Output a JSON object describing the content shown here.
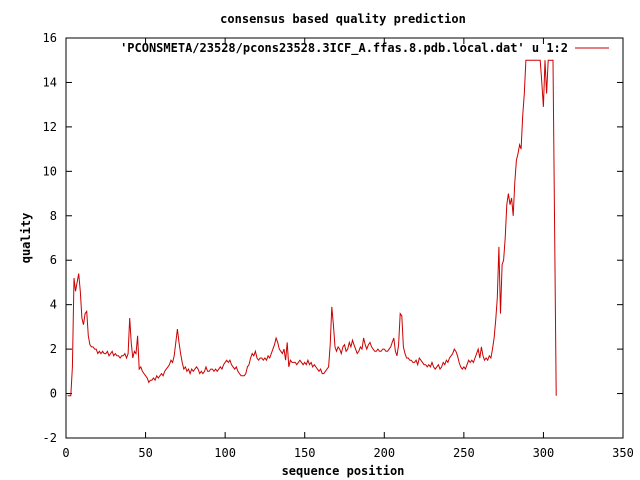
{
  "chart_data": {
    "type": "line",
    "title": "consensus based quality prediction",
    "xlabel": "sequence position",
    "ylabel": "quality",
    "xlim": [
      0,
      350
    ],
    "ylim": [
      -2,
      16
    ],
    "xticks": [
      0,
      50,
      100,
      150,
      200,
      250,
      300,
      350
    ],
    "yticks": [
      -2,
      0,
      2,
      4,
      6,
      8,
      10,
      12,
      14,
      16
    ],
    "grid": false,
    "legend_position": "top-right",
    "series": [
      {
        "name": "'PCONSMETA/23528/pcons23528.3ICF_A.ffas.8.pdb.local.dat' u 1:2",
        "color": "#cc0000",
        "x": [
          1,
          2,
          3,
          4,
          5,
          6,
          7,
          8,
          9,
          10,
          11,
          12,
          13,
          14,
          15,
          16,
          17,
          18,
          19,
          20,
          21,
          22,
          23,
          24,
          25,
          26,
          27,
          28,
          29,
          30,
          31,
          32,
          33,
          34,
          35,
          36,
          37,
          38,
          39,
          40,
          41,
          42,
          43,
          44,
          45,
          46,
          47,
          48,
          49,
          50,
          51,
          52,
          53,
          54,
          55,
          56,
          57,
          58,
          59,
          60,
          61,
          62,
          63,
          64,
          65,
          66,
          67,
          68,
          69,
          70,
          71,
          72,
          73,
          74,
          75,
          76,
          77,
          78,
          79,
          80,
          81,
          82,
          83,
          84,
          85,
          86,
          87,
          88,
          89,
          90,
          91,
          92,
          93,
          94,
          95,
          96,
          97,
          98,
          99,
          100,
          101,
          102,
          103,
          104,
          105,
          106,
          107,
          108,
          109,
          110,
          111,
          112,
          113,
          114,
          115,
          116,
          117,
          118,
          119,
          120,
          121,
          122,
          123,
          124,
          125,
          126,
          127,
          128,
          129,
          130,
          131,
          132,
          133,
          134,
          135,
          136,
          137,
          138,
          139,
          140,
          141,
          142,
          143,
          144,
          145,
          146,
          147,
          148,
          149,
          150,
          151,
          152,
          153,
          154,
          155,
          156,
          157,
          158,
          159,
          160,
          161,
          162,
          163,
          164,
          165,
          166,
          167,
          168,
          169,
          170,
          171,
          172,
          173,
          174,
          175,
          176,
          177,
          178,
          179,
          180,
          181,
          182,
          183,
          184,
          185,
          186,
          187,
          188,
          189,
          190,
          191,
          192,
          193,
          194,
          195,
          196,
          197,
          198,
          199,
          200,
          201,
          202,
          203,
          204,
          205,
          206,
          207,
          208,
          209,
          210,
          211,
          212,
          213,
          214,
          215,
          216,
          217,
          218,
          219,
          220,
          221,
          222,
          223,
          224,
          225,
          226,
          227,
          228,
          229,
          230,
          231,
          232,
          233,
          234,
          235,
          236,
          237,
          238,
          239,
          240,
          241,
          242,
          243,
          244,
          245,
          246,
          247,
          248,
          249,
          250,
          251,
          252,
          253,
          254,
          255,
          256,
          257,
          258,
          259,
          260,
          261,
          262,
          263,
          264,
          265,
          266,
          267,
          268,
          269,
          270,
          271,
          272,
          273,
          274,
          275,
          276,
          277,
          278,
          279,
          280,
          281,
          282,
          283,
          284,
          285,
          286,
          287,
          288,
          289,
          290,
          291,
          292,
          293,
          294,
          295,
          296,
          297,
          298,
          299,
          300,
          301,
          302,
          303,
          304,
          305,
          306,
          307,
          308
        ],
        "y": [
          -0.1,
          -0.1,
          -0.1,
          1.2,
          5.2,
          4.6,
          5.0,
          5.4,
          4.6,
          3.4,
          3.1,
          3.6,
          3.7,
          2.6,
          2.2,
          2.1,
          2.1,
          2.0,
          2.0,
          1.8,
          1.9,
          1.8,
          1.9,
          1.8,
          1.8,
          1.9,
          1.7,
          1.8,
          1.9,
          1.7,
          1.8,
          1.7,
          1.7,
          1.6,
          1.7,
          1.7,
          1.8,
          1.6,
          1.8,
          3.4,
          2.3,
          1.6,
          1.9,
          1.8,
          2.6,
          1.1,
          1.2,
          1.0,
          0.9,
          0.8,
          0.7,
          0.5,
          0.6,
          0.6,
          0.7,
          0.6,
          0.8,
          0.7,
          0.8,
          0.9,
          0.8,
          1.0,
          1.1,
          1.2,
          1.3,
          1.5,
          1.4,
          1.7,
          2.3,
          2.9,
          2.3,
          1.8,
          1.4,
          1.1,
          1.2,
          1.0,
          1.1,
          0.9,
          1.1,
          1.0,
          1.1,
          1.2,
          1.1,
          0.9,
          1.0,
          0.9,
          1.0,
          1.2,
          1.0,
          1.0,
          1.1,
          1.1,
          1.0,
          1.1,
          1.0,
          1.1,
          1.2,
          1.1,
          1.3,
          1.4,
          1.5,
          1.4,
          1.5,
          1.3,
          1.2,
          1.1,
          1.2,
          1.0,
          0.9,
          0.8,
          0.8,
          0.8,
          0.9,
          1.2,
          1.3,
          1.6,
          1.8,
          1.7,
          1.9,
          1.6,
          1.5,
          1.6,
          1.6,
          1.5,
          1.6,
          1.5,
          1.7,
          1.6,
          1.8,
          2.0,
          2.2,
          2.5,
          2.3,
          2.0,
          1.9,
          1.8,
          2.0,
          1.5,
          2.3,
          1.2,
          1.5,
          1.4,
          1.4,
          1.4,
          1.3,
          1.4,
          1.5,
          1.4,
          1.3,
          1.4,
          1.3,
          1.5,
          1.3,
          1.4,
          1.2,
          1.3,
          1.2,
          1.1,
          1.0,
          1.1,
          0.9,
          0.9,
          1.0,
          1.1,
          1.2,
          2.2,
          3.9,
          3.1,
          2.1,
          1.9,
          2.1,
          2.0,
          1.8,
          2.1,
          2.2,
          1.9,
          2.0,
          2.3,
          2.1,
          2.4,
          2.2,
          2.0,
          1.8,
          1.9,
          2.1,
          2.0,
          2.5,
          2.2,
          2.0,
          2.2,
          2.3,
          2.1,
          2.0,
          1.9,
          1.9,
          2.0,
          1.9,
          1.9,
          2.0,
          2.0,
          1.9,
          1.9,
          2.0,
          2.1,
          2.3,
          2.5,
          1.9,
          1.7,
          2.2,
          3.6,
          3.5,
          2.1,
          1.8,
          1.6,
          1.6,
          1.5,
          1.5,
          1.4,
          1.4,
          1.5,
          1.3,
          1.6,
          1.5,
          1.4,
          1.3,
          1.3,
          1.2,
          1.3,
          1.2,
          1.4,
          1.2,
          1.1,
          1.2,
          1.3,
          1.1,
          1.2,
          1.4,
          1.3,
          1.5,
          1.4,
          1.6,
          1.7,
          1.8,
          2.0,
          1.9,
          1.7,
          1.4,
          1.2,
          1.1,
          1.2,
          1.1,
          1.3,
          1.5,
          1.4,
          1.5,
          1.4,
          1.6,
          1.8,
          2.0,
          1.6,
          2.1,
          1.7,
          1.5,
          1.6,
          1.5,
          1.7,
          1.6,
          2.0,
          2.5,
          3.3,
          4.3,
          6.6,
          3.6,
          5.8,
          6.0,
          7.0,
          8.5,
          9.0,
          8.5,
          8.8,
          8.0,
          9.5,
          10.5,
          10.8,
          11.2,
          11.0,
          12.5,
          13.5,
          15.0,
          15.0,
          15.0,
          15.0,
          15.0,
          15.0,
          15.0,
          15.0,
          15.0,
          15.0,
          14.0,
          12.9,
          15.0,
          13.5,
          15.0,
          15.0,
          15.0,
          15.0,
          7.5,
          -0.1
        ]
      }
    ]
  }
}
